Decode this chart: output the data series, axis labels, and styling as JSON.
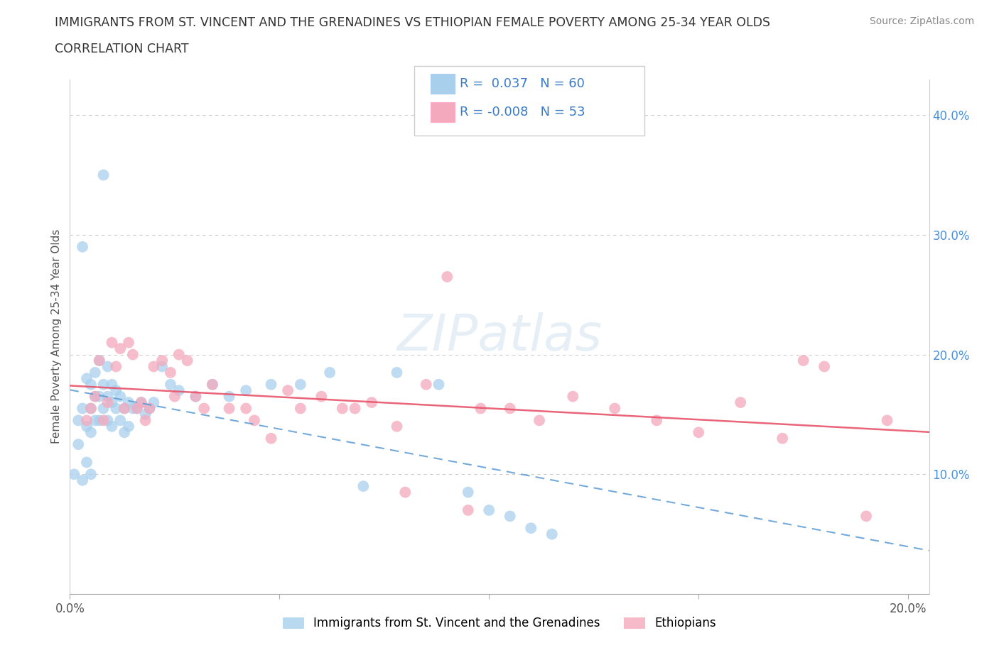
{
  "title_line1": "IMMIGRANTS FROM ST. VINCENT AND THE GRENADINES VS ETHIOPIAN FEMALE POVERTY AMONG 25-34 YEAR OLDS",
  "title_line2": "CORRELATION CHART",
  "source": "Source: ZipAtlas.com",
  "ylabel": "Female Poverty Among 25-34 Year Olds",
  "xlim": [
    0.0,
    0.205
  ],
  "ylim": [
    0.0,
    0.43
  ],
  "legend1_label": "Immigrants from St. Vincent and the Grenadines",
  "legend2_label": "Ethiopians",
  "r1": 0.037,
  "n1": 60,
  "r2": -0.008,
  "n2": 53,
  "blue_color": "#a8d0ed",
  "pink_color": "#f4a9bc",
  "blue_trend_color": "#5b9bd5",
  "pink_trend_color": "#e8546a",
  "watermark": "ZIPatlas",
  "blue_x": [
    0.001,
    0.002,
    0.002,
    0.003,
    0.003,
    0.003,
    0.004,
    0.004,
    0.004,
    0.005,
    0.005,
    0.005,
    0.005,
    0.006,
    0.006,
    0.006,
    0.007,
    0.007,
    0.007,
    0.008,
    0.008,
    0.008,
    0.009,
    0.009,
    0.009,
    0.01,
    0.01,
    0.01,
    0.011,
    0.011,
    0.012,
    0.012,
    0.013,
    0.013,
    0.014,
    0.014,
    0.015,
    0.016,
    0.017,
    0.018,
    0.019,
    0.02,
    0.022,
    0.024,
    0.026,
    0.03,
    0.034,
    0.038,
    0.042,
    0.048,
    0.055,
    0.062,
    0.07,
    0.078,
    0.088,
    0.095,
    0.1,
    0.105,
    0.11,
    0.115
  ],
  "blue_y": [
    0.1,
    0.145,
    0.125,
    0.29,
    0.155,
    0.095,
    0.18,
    0.14,
    0.11,
    0.175,
    0.155,
    0.135,
    0.1,
    0.165,
    0.185,
    0.145,
    0.195,
    0.165,
    0.145,
    0.175,
    0.155,
    0.35,
    0.19,
    0.165,
    0.145,
    0.175,
    0.16,
    0.14,
    0.17,
    0.155,
    0.165,
    0.145,
    0.155,
    0.135,
    0.16,
    0.14,
    0.155,
    0.155,
    0.16,
    0.15,
    0.155,
    0.16,
    0.19,
    0.175,
    0.17,
    0.165,
    0.175,
    0.165,
    0.17,
    0.175,
    0.175,
    0.185,
    0.09,
    0.185,
    0.175,
    0.085,
    0.07,
    0.065,
    0.055,
    0.05
  ],
  "pink_x": [
    0.004,
    0.005,
    0.006,
    0.007,
    0.008,
    0.009,
    0.01,
    0.011,
    0.012,
    0.013,
    0.014,
    0.015,
    0.016,
    0.017,
    0.018,
    0.019,
    0.02,
    0.022,
    0.024,
    0.026,
    0.028,
    0.03,
    0.034,
    0.038,
    0.042,
    0.048,
    0.055,
    0.06,
    0.065,
    0.072,
    0.078,
    0.085,
    0.09,
    0.098,
    0.105,
    0.112,
    0.12,
    0.13,
    0.14,
    0.15,
    0.16,
    0.17,
    0.18,
    0.19,
    0.195,
    0.025,
    0.032,
    0.044,
    0.052,
    0.068,
    0.08,
    0.095,
    0.175
  ],
  "pink_y": [
    0.145,
    0.155,
    0.165,
    0.195,
    0.145,
    0.16,
    0.21,
    0.19,
    0.205,
    0.155,
    0.21,
    0.2,
    0.155,
    0.16,
    0.145,
    0.155,
    0.19,
    0.195,
    0.185,
    0.2,
    0.195,
    0.165,
    0.175,
    0.155,
    0.155,
    0.13,
    0.155,
    0.165,
    0.155,
    0.16,
    0.14,
    0.175,
    0.265,
    0.155,
    0.155,
    0.145,
    0.165,
    0.155,
    0.145,
    0.135,
    0.16,
    0.13,
    0.19,
    0.065,
    0.145,
    0.165,
    0.155,
    0.145,
    0.17,
    0.155,
    0.085,
    0.07,
    0.195
  ]
}
